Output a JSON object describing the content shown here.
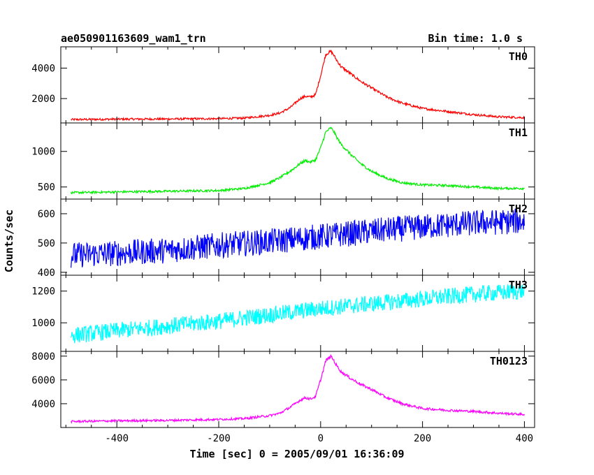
{
  "header": {
    "title": "ae050901163609_wam1_trn",
    "bin_time": "Bin time: 1.0 s"
  },
  "chart_data": {
    "type": "line",
    "title": "ae050901163609_wam1_trn",
    "subtitle": "Bin time: 1.0 s",
    "xlabel": "Time [sec] 0 = 2005/09/01 16:36:09",
    "ylabel": "Counts/sec",
    "xlim": [
      -510,
      420
    ],
    "x_ticks": [
      -400,
      -200,
      0,
      200,
      400
    ],
    "grid": false,
    "panels": [
      {
        "name": "TH0",
        "color": "#ff0000",
        "ylim": [
          400,
          5400
        ],
        "y_ticks": [
          2000,
          4000
        ],
        "x": [
          -490,
          -400,
          -300,
          -200,
          -150,
          -100,
          -80,
          -60,
          -40,
          -30,
          -20,
          -10,
          0,
          10,
          20,
          25,
          30,
          40,
          60,
          80,
          100,
          130,
          160,
          200,
          250,
          300,
          350,
          400
        ],
        "y": [
          620,
          650,
          660,
          680,
          720,
          900,
          1050,
          1400,
          2000,
          2150,
          2100,
          2250,
          3500,
          4900,
          5100,
          4900,
          4600,
          4100,
          3600,
          3100,
          2700,
          2100,
          1700,
          1350,
          1150,
          950,
          800,
          750
        ]
      },
      {
        "name": "TH1",
        "color": "#00ee00",
        "ylim": [
          330,
          1400
        ],
        "y_ticks": [
          500,
          1000
        ],
        "x": [
          -490,
          -400,
          -300,
          -200,
          -150,
          -100,
          -80,
          -60,
          -40,
          -30,
          -20,
          -10,
          0,
          10,
          20,
          25,
          30,
          40,
          60,
          80,
          100,
          130,
          160,
          200,
          250,
          300,
          350,
          400
        ],
        "y": [
          420,
          430,
          440,
          450,
          480,
          560,
          630,
          720,
          830,
          870,
          850,
          880,
          1050,
          1270,
          1330,
          1290,
          1220,
          1100,
          950,
          820,
          720,
          620,
          560,
          530,
          520,
          500,
          480,
          480
        ]
      },
      {
        "name": "TH2",
        "color": "#0000ff",
        "ylim": [
          390,
          650
        ],
        "y_ticks": [
          400,
          500,
          600
        ],
        "x": [
          -490,
          -400,
          -300,
          -200,
          -100,
          0,
          100,
          200,
          300,
          400
        ],
        "y": [
          458,
          465,
          475,
          492,
          505,
          522,
          540,
          555,
          568,
          575
        ]
      },
      {
        "name": "TH3",
        "color": "#00ffff",
        "ylim": [
          820,
          1300
        ],
        "y_ticks": [
          1000,
          1200
        ],
        "x": [
          -490,
          -400,
          -300,
          -200,
          -100,
          0,
          100,
          200,
          300,
          400
        ],
        "y": [
          920,
          950,
          980,
          1010,
          1050,
          1090,
          1120,
          1150,
          1180,
          1200
        ]
      },
      {
        "name": "TH0123",
        "color": "#ff00ff",
        "ylim": [
          2000,
          8400
        ],
        "y_ticks": [
          4000,
          6000,
          8000
        ],
        "x": [
          -490,
          -400,
          -300,
          -200,
          -150,
          -100,
          -80,
          -60,
          -40,
          -30,
          -20,
          -10,
          0,
          10,
          20,
          25,
          30,
          40,
          60,
          80,
          100,
          130,
          160,
          200,
          250,
          300,
          350,
          400
        ],
        "y": [
          2500,
          2560,
          2600,
          2680,
          2750,
          3000,
          3200,
          3700,
          4300,
          4500,
          4400,
          4600,
          6000,
          7600,
          8000,
          7700,
          7300,
          6700,
          6100,
          5600,
          5200,
          4500,
          4000,
          3600,
          3450,
          3350,
          3200,
          3100
        ]
      }
    ]
  }
}
